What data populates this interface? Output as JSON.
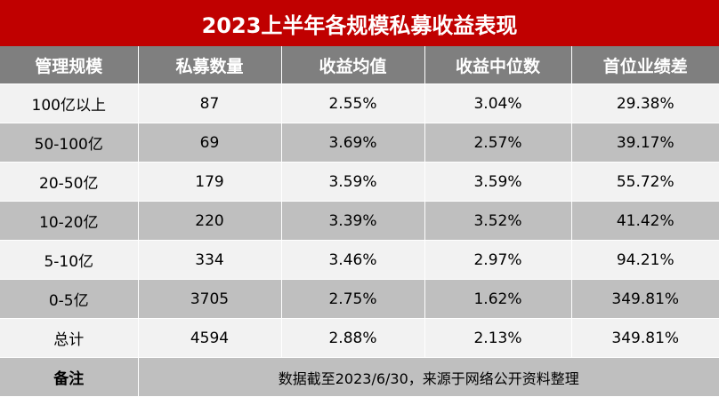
{
  "title": "2023上半年各规模私募收益表现",
  "columns": [
    "管理规模",
    "私募数量",
    "收益均值",
    "收益中位数",
    "首位业绩差"
  ],
  "rows": [
    [
      "100亿以上",
      "87",
      "2.55%",
      "3.04%",
      "29.38%"
    ],
    [
      "50-100亿",
      "69",
      "3.69%",
      "2.57%",
      "39.17%"
    ],
    [
      "20-50亿",
      "179",
      "3.59%",
      "3.59%",
      "55.72%"
    ],
    [
      "10-20亿",
      "220",
      "3.39%",
      "3.52%",
      "41.42%"
    ],
    [
      "5-10亿",
      "334",
      "3.46%",
      "2.97%",
      "94.21%"
    ],
    [
      "0-5亿",
      "3705",
      "2.75%",
      "1.62%",
      "349.81%"
    ],
    [
      "总计",
      "4594",
      "2.88%",
      "2.13%",
      "349.81%"
    ]
  ],
  "note": {
    "label": "备注",
    "text": "数据截至2023/6/30，来源于网络公开资料整理"
  },
  "colors": {
    "title_bg": "#c00000",
    "header_bg": "#7f7f7f",
    "row_light": "#f2f2f2",
    "row_dark": "#bfbfbf"
  }
}
